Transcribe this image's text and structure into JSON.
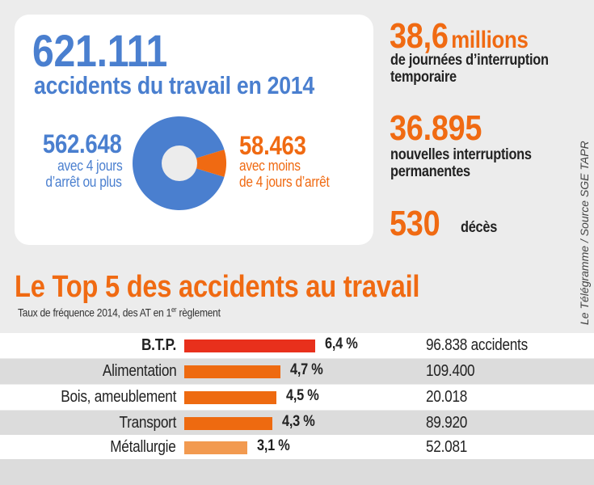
{
  "header": {
    "total": "621.111",
    "total_label": "accidents du travail en 2014"
  },
  "donut": {
    "left_value": "562.648",
    "left_line1": "avec 4 jours",
    "left_line2": "d’arrêt ou plus",
    "right_value": "58.463",
    "right_line1": "avec  moins",
    "right_line2": "de 4 jours d’arrêt",
    "colors": {
      "major": "#4a7fcf",
      "minor": "#f06a12"
    }
  },
  "stats": [
    {
      "value": "38,6",
      "unit": "millions",
      "line1": "de journées d’interruption",
      "line2": "temporaire"
    },
    {
      "value": "36.895",
      "line1": "nouvelles interruptions",
      "line2": "permanentes"
    },
    {
      "value": "530",
      "unit": "décès"
    }
  ],
  "credit": "Le Télégramme / Source SGE TAPR",
  "chart_data": {
    "type": "bar",
    "title": "Le Top 5 des accidents au travail",
    "subtitle_pre": "Taux de fréquence 2014, des AT en 1",
    "subtitle_sup": "er",
    "subtitle_post": " règlement",
    "categories": [
      "B.T.P.",
      "Alimentation",
      "Bois, ameublement",
      "Transport",
      "Métallurgie"
    ],
    "values": [
      6.4,
      4.7,
      4.5,
      4.3,
      3.1
    ],
    "value_labels": [
      "6,4 %",
      "4,7 %",
      "4,5 %",
      "4,3 %",
      "3,1 %"
    ],
    "counts": [
      "96.838 accidents",
      "109.400",
      "20.018",
      "89.920",
      "52.081"
    ],
    "colors": [
      "#e8301c",
      "#ee6a10",
      "#ee6a10",
      "#ee6a10",
      "#f29a50"
    ],
    "donut_values": [
      562648,
      58463
    ]
  }
}
